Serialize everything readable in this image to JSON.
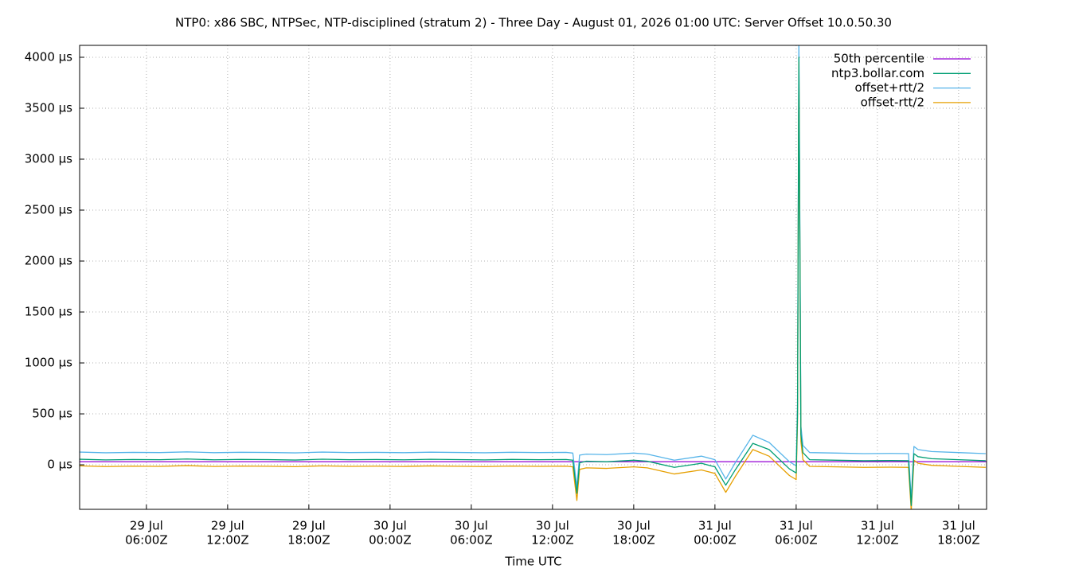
{
  "chart_data": {
    "type": "line",
    "title": "NTP0: x86 SBC, NTPSec, NTP-disciplined (stratum 2) - Three Day - August 01, 2026 01:00 UTC: Server Offset 10.0.50.30",
    "x_label": "Time UTC",
    "x": [
      "29 Jul 01:00Z",
      "29 Jul 03:00Z",
      "29 Jul 05:00Z",
      "29 Jul 07:00Z",
      "29 Jul 09:00Z",
      "29 Jul 11:00Z",
      "29 Jul 13:00Z",
      "29 Jul 15:00Z",
      "29 Jul 17:00Z",
      "29 Jul 19:00Z",
      "29 Jul 21:00Z",
      "29 Jul 23:00Z",
      "30 Jul 01:00Z",
      "30 Jul 03:00Z",
      "30 Jul 05:00Z",
      "30 Jul 07:00Z",
      "30 Jul 09:00Z",
      "30 Jul 11:00Z",
      "30 Jul 13:00Z",
      "30 Jul 13:30Z",
      "30 Jul 13:48Z",
      "30 Jul 14:00Z",
      "30 Jul 14:30Z",
      "30 Jul 16:00Z",
      "30 Jul 18:00Z",
      "30 Jul 19:00Z",
      "30 Jul 21:00Z",
      "30 Jul 23:00Z",
      "31 Jul 00:00Z",
      "31 Jul 00:48Z",
      "31 Jul 01:30Z",
      "31 Jul 02:48Z",
      "31 Jul 04:00Z",
      "31 Jul 05:30Z",
      "31 Jul 06:00Z",
      "31 Jul 06:06Z",
      "31 Jul 06:12Z",
      "31 Jul 06:21Z",
      "31 Jul 06:30Z",
      "31 Jul 07:00Z",
      "31 Jul 09:00Z",
      "31 Jul 11:00Z",
      "31 Jul 13:00Z",
      "31 Jul 14:18Z",
      "31 Jul 14:30Z",
      "31 Jul 14:42Z",
      "31 Jul 15:00Z",
      "31 Jul 16:00Z",
      "31 Jul 18:00Z",
      "31 Jul 20:00Z"
    ],
    "series": [
      {
        "name": "50th percentile",
        "color": "#9400d3",
        "x": [
          "29 Jul 01:04Z",
          "31 Jul 20:04Z"
        ],
        "values": [
          31,
          31
        ]
      },
      {
        "name": "ntp3.bollar.com",
        "color": "#009e73",
        "values": [
          55,
          48,
          52,
          50,
          57,
          49,
          53,
          51,
          47,
          55,
          50,
          52,
          49,
          54,
          51,
          48,
          53,
          50,
          52,
          45,
          -280,
          20,
          35,
          30,
          45,
          35,
          -25,
          15,
          -20,
          -200,
          -50,
          210,
          150,
          -40,
          -80,
          500,
          4000,
          300,
          120,
          50,
          45,
          40,
          42,
          40,
          -400,
          110,
          80,
          60,
          50,
          40
        ]
      },
      {
        "name": "offset+rtt/2",
        "color": "#56b4e9",
        "values": [
          125,
          118,
          122,
          120,
          127,
          119,
          123,
          121,
          117,
          125,
          120,
          122,
          119,
          124,
          121,
          118,
          123,
          120,
          122,
          115,
          -220,
          95,
          105,
          100,
          115,
          105,
          45,
          85,
          50,
          -140,
          20,
          290,
          220,
          30,
          -10,
          600,
          4200,
          380,
          190,
          120,
          115,
          110,
          112,
          110,
          -340,
          180,
          150,
          130,
          120,
          110
        ]
      },
      {
        "name": "offset-rtt/2",
        "color": "#e69f00",
        "values": [
          -10,
          -17,
          -13,
          -15,
          -8,
          -16,
          -12,
          -14,
          -18,
          -10,
          -15,
          -13,
          -16,
          -11,
          -14,
          -17,
          -12,
          -15,
          -13,
          -20,
          -350,
          -45,
          -30,
          -35,
          -20,
          -30,
          -90,
          -50,
          -85,
          -270,
          -115,
          150,
          85,
          -105,
          -145,
          420,
          3950,
          230,
          50,
          -15,
          -20,
          -25,
          -23,
          -25,
          -450,
          45,
          15,
          -5,
          -15,
          -25
        ]
      }
    ],
    "xlim": [
      "29 Jul 01:04Z",
      "31 Jul 20:04Z"
    ],
    "xticks": [
      {
        "value": "29 Jul 06:00Z",
        "label": [
          "29 Jul",
          "06:00Z"
        ]
      },
      {
        "value": "29 Jul 12:00Z",
        "label": [
          "29 Jul",
          "12:00Z"
        ]
      },
      {
        "value": "29 Jul 18:00Z",
        "label": [
          "29 Jul",
          "18:00Z"
        ]
      },
      {
        "value": "30 Jul 00:00Z",
        "label": [
          "30 Jul",
          "00:00Z"
        ]
      },
      {
        "value": "30 Jul 06:00Z",
        "label": [
          "30 Jul",
          "06:00Z"
        ]
      },
      {
        "value": "30 Jul 12:00Z",
        "label": [
          "30 Jul",
          "12:00Z"
        ]
      },
      {
        "value": "30 Jul 18:00Z",
        "label": [
          "30 Jul",
          "18:00Z"
        ]
      },
      {
        "value": "31 Jul 00:00Z",
        "label": [
          "31 Jul",
          "00:00Z"
        ]
      },
      {
        "value": "31 Jul 06:00Z",
        "label": [
          "31 Jul",
          "06:00Z"
        ]
      },
      {
        "value": "31 Jul 12:00Z",
        "label": [
          "31 Jul",
          "12:00Z"
        ]
      },
      {
        "value": "31 Jul 18:00Z",
        "label": [
          "31 Jul",
          "18:00Z"
        ]
      }
    ],
    "ylim": [
      -437,
      4117
    ],
    "yticks": [
      {
        "value": 0,
        "label": "0 µs"
      },
      {
        "value": 500,
        "label": "500 µs"
      },
      {
        "value": 1000,
        "label": "1000 µs"
      },
      {
        "value": 1500,
        "label": "1500 µs"
      },
      {
        "value": 2000,
        "label": "2000 µs"
      },
      {
        "value": 2500,
        "label": "2500 µs"
      },
      {
        "value": 3000,
        "label": "3000 µs"
      },
      {
        "value": 3500,
        "label": "3500 µs"
      },
      {
        "value": 4000,
        "label": "4000 µs"
      }
    ],
    "grid": true,
    "legend": "top-right"
  }
}
